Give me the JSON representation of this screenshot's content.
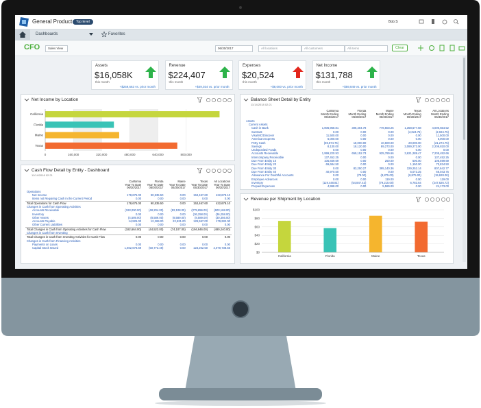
{
  "header": {
    "product": "General Product",
    "level": "Top level",
    "user": "Bob S"
  },
  "nav": {
    "dashboards": "Dashboards",
    "favorites": "Favorites"
  },
  "toolbar": {
    "dashboard": "CFO",
    "view": "Sales View",
    "date": "06/30/2017",
    "filters": [
      "All locations",
      "All customers",
      "All items"
    ],
    "clear": "Clear"
  },
  "kpis": [
    {
      "label": "Assets",
      "value": "$16,058K",
      "period": "this month",
      "change": "+$259,663 vs. prior month",
      "trend": "up",
      "arrow_color": "#2db34a"
    },
    {
      "label": "Revenue",
      "value": "$224,407",
      "period": "this month",
      "change": "+$49,034 vs. prior month",
      "trend": "up",
      "arrow_color": "#2db34a"
    },
    {
      "label": "Expenses",
      "value": "$20,524",
      "period": "this month",
      "change": "+$8,000 vs. prior month",
      "trend": "up",
      "arrow_color": "#e3261c"
    },
    {
      "label": "Net Income",
      "value": "$131,788",
      "period": "this month",
      "change": "+$59,849 vs. prior month",
      "trend": "up",
      "arrow_color": "#2db34a"
    }
  ],
  "panels": [
    {
      "title": "Net Income by Location",
      "chart": {
        "type": "hbar",
        "categories": [
          "California",
          "Florida",
          "Maine",
          "Texas"
        ],
        "values": [
          990000,
          390000,
          420000,
          750000
        ],
        "colors": [
          "#c5d63d",
          "#39c3b6",
          "#f5b52e",
          "#f26a30"
        ],
        "xlim": [
          0,
          1000000
        ],
        "xticks": [
          0,
          {
            "value": 160000,
            "label": "160,000"
          },
          {
            "value": 320000,
            "label": "320,000"
          },
          {
            "value": 480000,
            "label": "480,000"
          },
          {
            "value": 640000,
            "label": "640,000"
          },
          {
            "value": 800000,
            "label": "800,000"
          }
        ]
      }
    },
    {
      "title": "Balance Sheet Detail by Entity",
      "timestamp": "11/14/2018 02:21",
      "table": {
        "columns": [
          "California",
          "Florida",
          "Maine",
          "Texas",
          "All Locations"
        ],
        "period": "Month Ending",
        "date": "06/30/2017",
        "rows": [
          {
            "label": "Assets",
            "style": "section"
          },
          {
            "label": "Current Assets",
            "style": "subsection"
          },
          {
            "label": "Cash in Bank",
            "style": "item",
            "values": [
              "1,006,968.81",
              "306,404.78",
              "778,603.25",
              "1,358,577.68",
              "4,000,554.52"
            ]
          },
          {
            "label": "Suntrust",
            "style": "item",
            "values": [
              "0.00",
              "0.00",
              "0.00",
              "(2,024.75)",
              "(2,024.75)"
            ]
          },
          {
            "label": "Visa/MC/Discover",
            "style": "item",
            "values": [
              "11,500.00",
              "0.00",
              "0.00",
              "0.00",
              "11,500.00"
            ]
          },
          {
            "label": "American Express",
            "style": "item",
            "values": [
              "6,000.00",
              "0.00",
              "0.00",
              "0.00",
              "6,000.00"
            ]
          },
          {
            "label": "Petty Cash",
            "style": "item",
            "values": [
              "(69,874.75)",
              "18,000.00",
              "10,600.00",
              "20,000.00",
              "(21,274.75)"
            ]
          },
          {
            "label": "Savings",
            "style": "item",
            "values": [
              "8,130.00",
              "18,120.00",
              "89,273.00",
              "2,089,273.00",
              "2,209,810.00"
            ]
          },
          {
            "label": "Undeposited Funds",
            "style": "item",
            "values": [
              "0.00",
              "0.00",
              "0.00",
              "0.00",
              "0.00"
            ]
          },
          {
            "label": "Accounts Receivable",
            "style": "item",
            "values": [
              "1,999,220.93",
              "659,152.73",
              "925,789.66",
              "3,621,289.47",
              "7,205,452.66"
            ]
          },
          {
            "label": "Intercompany Receivable",
            "style": "item",
            "values": [
              "137,452.25",
              "0.00",
              "0.00",
              "0.00",
              "137,452.25"
            ]
          },
          {
            "label": "Due From Entity 10",
            "style": "item",
            "values": [
              "105,849.69",
              "0.00",
              "250.00",
              "500.00",
              "106,599.69"
            ]
          },
          {
            "label": "Due From Entity 20",
            "style": "item",
            "values": [
              "69,684.50",
              "0.00",
              "0.00",
              "1,150.00",
              "70,834.50"
            ]
          },
          {
            "label": "Due From Entity 30",
            "style": "item",
            "values": [
              "0.00",
              "83,250.27",
              "395,140.36",
              "329,252.14",
              "807,642.77"
            ]
          },
          {
            "label": "Due From Entity 40",
            "style": "item",
            "values": [
              "40,970.50",
              "0.00",
              "0.00",
              "5,073.25",
              "66,043.75"
            ]
          },
          {
            "label": "Allowance For Doubtful Accounts",
            "style": "item",
            "values": [
              "0.00",
              "(78.00)",
              "(8,875.00)",
              "(8,875.00)",
              "(19,628.00)"
            ]
          },
          {
            "label": "Employee Advances",
            "style": "item",
            "values": [
              "0.00",
              "0.00",
              "119.00",
              "0.00",
              "119.00"
            ]
          },
          {
            "label": "Inventory",
            "style": "item",
            "values": [
              "(119,448.81)",
              "(54,847.43)",
              "(79,215.00)",
              "6,783.64",
              "(247,626.72)"
            ]
          },
          {
            "label": "Prepaid Expenses",
            "style": "item",
            "values": [
              "4,998.00",
              "0.00",
              "5,589.00",
              "0.00",
              "24,173.00"
            ]
          }
        ]
      }
    },
    {
      "title": "Cash Flow Detail by Entity - Dashboard",
      "timestamp": "11/14/2018 02:21",
      "table": {
        "columns": [
          "California",
          "Florida",
          "Maine",
          "Texas",
          "All Locations"
        ],
        "period": "Year To Date",
        "date": "06/30/2017",
        "rows": [
          {
            "label": "Operations",
            "style": "section"
          },
          {
            "label": "Net Income",
            "style": "item",
            "values": [
              "178,675.00",
              "90,535.50",
              "0.00",
              "153,467.60",
              "422,678.10"
            ]
          },
          {
            "label": "Items not Requiring Cash in the Current Period",
            "style": "item",
            "values": [
              "0.00",
              "0.00",
              "0.00",
              "0.00",
              "0.00"
            ]
          },
          {
            "label": "Total Operations for Cash Flow",
            "style": "total",
            "values": [
              "178,675.00",
              "90,535.50",
              "0.00",
              "153,467.60",
              "422,678.10"
            ]
          },
          {
            "label": "Changes in Cash from Operating Activities",
            "style": "section"
          },
          {
            "label": "Accounts Receivable",
            "style": "item",
            "values": [
              "(193,000.00)",
              "(48,204.00)",
              "(82,108.00)",
              "(279,656.00)",
              "(603,168.00)"
            ]
          },
          {
            "label": "Inventory",
            "style": "item",
            "values": [
              "0.00",
              "0.00",
              "0.00",
              "(36,258.00)",
              "(36,258.00)"
            ]
          },
          {
            "label": "Other Assets",
            "style": "item",
            "values": [
              "(4,589.00)",
              "(8,589.00)",
              "(8,589.00)",
              "(8,589.00)",
              "(30,356.00)"
            ]
          },
          {
            "label": "Accounts Payable",
            "style": "item",
            "values": [
              "14,925.00",
              "12,269.00",
              "22,531.00",
              "129,557.00",
              "179,282.00"
            ]
          },
          {
            "label": "Other Current Liabilities",
            "style": "item",
            "values": [
              "0.00",
              "0.00",
              "0.00",
              "0.00",
              "0.00"
            ]
          },
          {
            "label": "Total Changes in Cash from Operating Activities for Cash Flow",
            "style": "total",
            "values": [
              "(182,664.00)",
              "(44,523.00)",
              "(74,107.00)",
              "(194,946.00)",
              "(490,240.00)"
            ]
          },
          {
            "label": "Changes in Cash from Investing",
            "style": "section"
          },
          {
            "label": "Total Changes in Cash from Investing Activities for Cash Flow",
            "style": "total",
            "values": [
              "0.00",
              "0.00",
              "0.00",
              "0.00",
              "0.00"
            ]
          },
          {
            "label": "Changes in Cash from Financing Activities",
            "style": "section"
          },
          {
            "label": "Payments on Loans",
            "style": "item",
            "values": [
              "0.00",
              "0.00",
              "0.00",
              "0.00",
              "0.00"
            ]
          },
          {
            "label": "Capital Stock Issued",
            "style": "item",
            "values": [
              "1,602,678.69",
              "(50,773.49)",
              "0.00",
              "123,202.50",
              "2,070,738.56"
            ]
          }
        ]
      }
    },
    {
      "title": "Revenue per Shipment by Location",
      "chart": {
        "type": "vbar",
        "categories": [
          "California",
          "Florida",
          "Maine",
          "Texas"
        ],
        "values": [
          74,
          57,
          86,
          72
        ],
        "colors": [
          "#c5d63d",
          "#39c3b6",
          "#f5b52e",
          "#f26a30"
        ],
        "ylim": [
          0,
          100
        ],
        "yticks": [
          {
            "value": 0,
            "label": "$0"
          },
          {
            "value": 20,
            "label": "$20"
          },
          {
            "value": 40,
            "label": "$40"
          },
          {
            "value": 60,
            "label": "$60"
          },
          {
            "value": 80,
            "label": "$80"
          },
          {
            "value": 100,
            "label": "$100"
          }
        ]
      }
    }
  ]
}
